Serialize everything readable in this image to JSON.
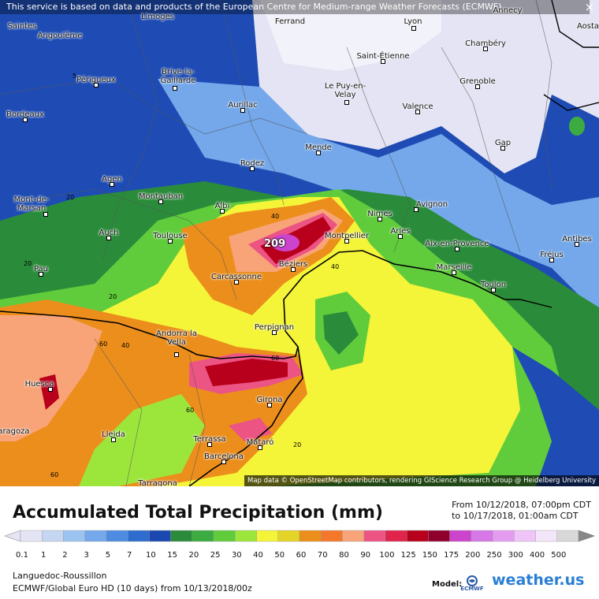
{
  "banner": "This service is based on data and products of the European Centre for Medium-range Weather Forecasts (ECMWF)",
  "close_glyph": "×",
  "attribution": "Map data © OpenStreetMap contributors, rendering GIScience Research Group @ Heidelberg University",
  "max_value": "209",
  "cities": [
    {
      "name": "Saintes"
    },
    {
      "name": "Angoulême"
    },
    {
      "name": "Limoges"
    },
    {
      "name": "Ferrand"
    },
    {
      "name": "Lyon"
    },
    {
      "name": "Annecy"
    },
    {
      "name": "Aosta"
    },
    {
      "name": "Saint-Étienne"
    },
    {
      "name": "Chambéry"
    },
    {
      "name": "Périgueux"
    },
    {
      "name": "Brive-la-Gaillarde"
    },
    {
      "name": "Le Puy-en-Velay"
    },
    {
      "name": "Grenoble"
    },
    {
      "name": "Bordeaux"
    },
    {
      "name": "Aurillac"
    },
    {
      "name": "Valence"
    },
    {
      "name": "Mende"
    },
    {
      "name": "Gap"
    },
    {
      "name": "Agen"
    },
    {
      "name": "Rodez"
    },
    {
      "name": "Montauban"
    },
    {
      "name": "Albi"
    },
    {
      "name": "Nimes"
    },
    {
      "name": "Avignon"
    },
    {
      "name": "Mont-de-Marsan"
    },
    {
      "name": "Auch"
    },
    {
      "name": "Toulouse"
    },
    {
      "name": "Montpellier"
    },
    {
      "name": "Arles"
    },
    {
      "name": "Aix-en-Provence"
    },
    {
      "name": "Antibes"
    },
    {
      "name": "Fréjus"
    },
    {
      "name": "Béziers"
    },
    {
      "name": "Pau"
    },
    {
      "name": "Carcassonne"
    },
    {
      "name": "Marseille"
    },
    {
      "name": "Toulon"
    },
    {
      "name": "Perpignan"
    },
    {
      "name": "Andorra la Vella"
    },
    {
      "name": "Huesca"
    },
    {
      "name": "Girona"
    },
    {
      "name": "Lleida"
    },
    {
      "name": "Terrassa"
    },
    {
      "name": "Mataró"
    },
    {
      "name": "Barcelona"
    },
    {
      "name": "Tarragona"
    },
    {
      "name": "Zaragoza"
    }
  ],
  "contour_labels": [
    "5",
    "20",
    "20",
    "20",
    "40",
    "40",
    "40",
    "60",
    "60",
    "60",
    "20",
    "60"
  ],
  "title": "Accumulated Total Precipitation (mm)",
  "date_from": "From 10/12/2018, 07:00pm CDT",
  "date_to": "to 10/17/2018, 01:00am CDT",
  "scale": {
    "values": [
      "0.1",
      "1",
      "2",
      "3",
      "5",
      "7",
      "10",
      "15",
      "20",
      "25",
      "30",
      "40",
      "50",
      "60",
      "70",
      "80",
      "90",
      "100",
      "125",
      "150",
      "175",
      "200",
      "250",
      "300",
      "400",
      "500"
    ],
    "colors": [
      "#e4e4f4",
      "#c4d6f2",
      "#9cc4f0",
      "#74a8ea",
      "#4d8ce2",
      "#2e6cd0",
      "#1b48b0",
      "#2a8c3a",
      "#3dac40",
      "#60cc3c",
      "#9ce63c",
      "#f4f438",
      "#e4d428",
      "#ec8e1c",
      "#f4782c",
      "#f8a478",
      "#ec5484",
      "#e0244c",
      "#b8001c",
      "#90002c",
      "#cc44cc",
      "#d778e8",
      "#e49cf0",
      "#f0c4f8",
      "#f4e6fa",
      "#d8d8d8"
    ]
  },
  "region": "Languedoc-Roussillon",
  "model_line": "ECMWF/Global Euro HD (10 days) from 10/13/2018/00z",
  "model_label": "Model:",
  "ecmwf_logo_text": "ECMWF",
  "brand": "weather.us"
}
